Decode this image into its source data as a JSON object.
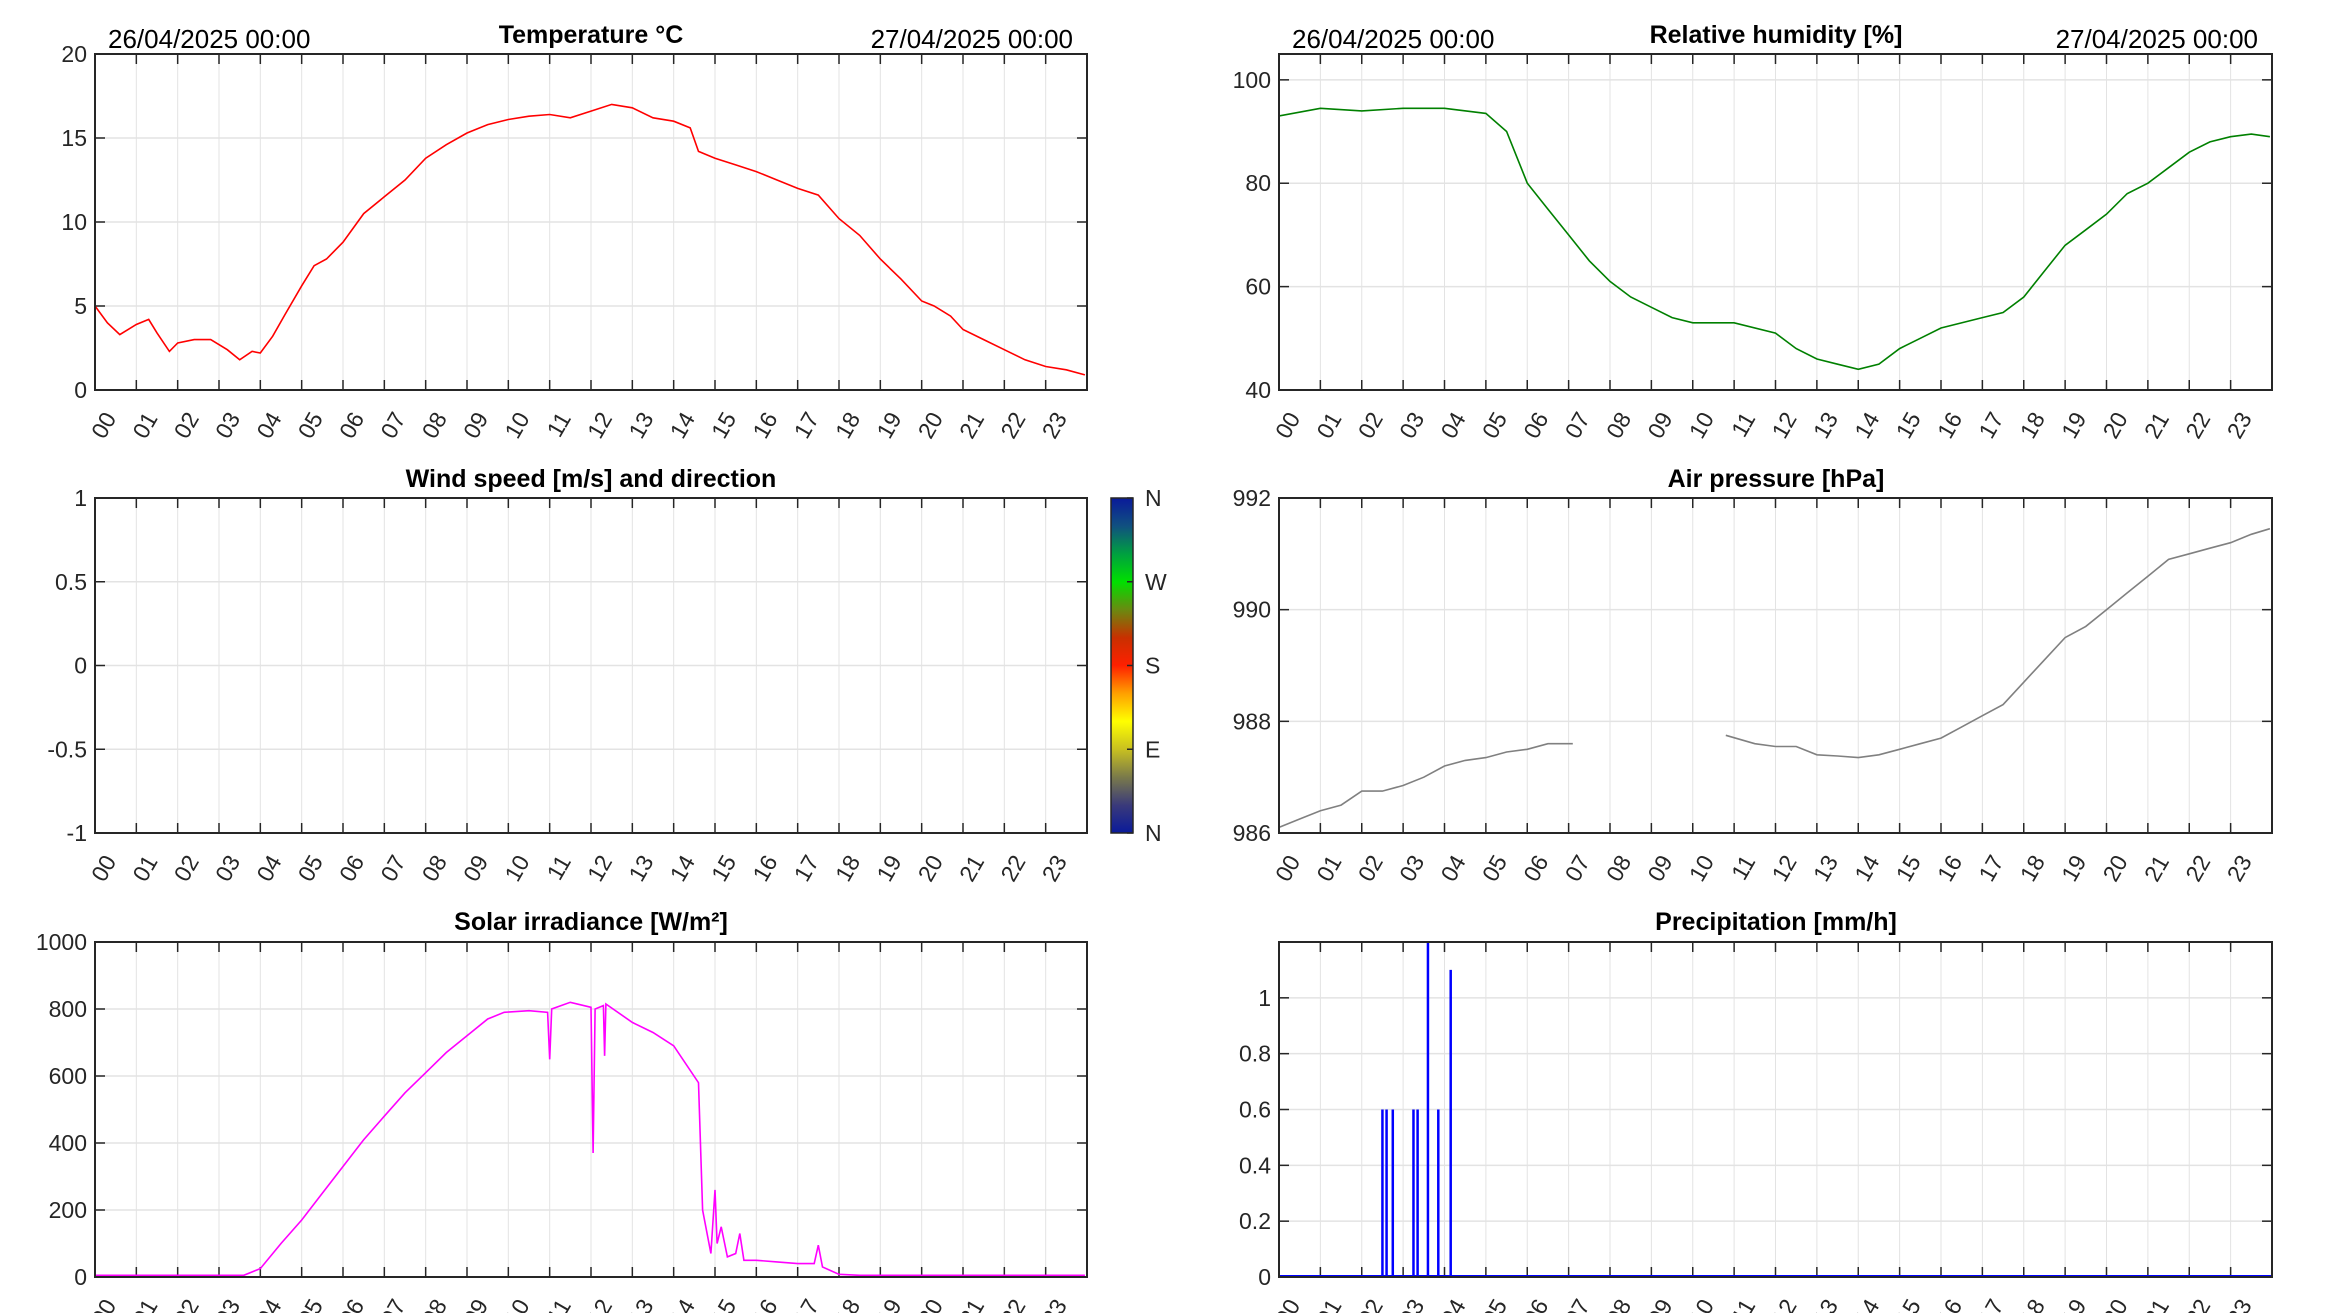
{
  "header": {
    "start_date": "26/04/2025 00:00",
    "end_date": "27/04/2025 00:00"
  },
  "hour_labels": [
    "00",
    "01",
    "02",
    "03",
    "04",
    "05",
    "06",
    "07",
    "08",
    "09",
    "10",
    "11",
    "12",
    "13",
    "14",
    "15",
    "16",
    "17",
    "18",
    "19",
    "20",
    "21",
    "22",
    "23"
  ],
  "colorbar": {
    "labels": [
      "N",
      "W",
      "S",
      "E",
      "N"
    ],
    "colors": [
      "#0a1a9a",
      "#3a3a7a",
      "#7a7a4a",
      "#c8c020",
      "#ffff00",
      "#ffa000",
      "#ff2000",
      "#c83000",
      "#6a8a10",
      "#00e000",
      "#00a040",
      "#105080",
      "#0a1a9a"
    ]
  },
  "chart_data": [
    {
      "type": "line",
      "title": "Temperature °C",
      "color": "#ff0000",
      "xlim": [
        0,
        24
      ],
      "ylim": [
        0,
        20
      ],
      "yticks": [
        "0",
        "5",
        "10",
        "15",
        "20"
      ],
      "ytick_values": [
        0,
        5,
        10,
        15,
        20
      ],
      "show_dates": true,
      "x": [
        0,
        0.3,
        0.6,
        1,
        1.3,
        1.5,
        1.8,
        2,
        2.4,
        2.8,
        3.2,
        3.5,
        3.8,
        4,
        4.3,
        4.6,
        5,
        5.3,
        5.6,
        6,
        6.5,
        7,
        7.5,
        8,
        8.5,
        9,
        9.5,
        10,
        10.5,
        11,
        11.5,
        12,
        12.5,
        13,
        13.5,
        14,
        14.4,
        14.6,
        15,
        15.5,
        16,
        16.5,
        17,
        17.5,
        18,
        18.5,
        19,
        19.5,
        20,
        20.3,
        20.7,
        21,
        21.5,
        22,
        22.5,
        23,
        23.5,
        23.95
      ],
      "y": [
        5,
        4,
        3.3,
        3.9,
        4.2,
        3.4,
        2.3,
        2.8,
        3,
        3,
        2.4,
        1.8,
        2.3,
        2.2,
        3.2,
        4.5,
        6.2,
        7.4,
        7.8,
        8.8,
        10.5,
        11.5,
        12.5,
        13.8,
        14.6,
        15.3,
        15.8,
        16.1,
        16.3,
        16.4,
        16.2,
        16.6,
        17,
        16.8,
        16.2,
        16,
        15.6,
        14.2,
        13.8,
        13.4,
        13,
        12.5,
        12,
        11.6,
        10.2,
        9.2,
        7.8,
        6.6,
        5.3,
        5,
        4.4,
        3.6,
        3,
        2.4,
        1.8,
        1.4,
        1.2,
        0.9
      ]
    },
    {
      "type": "line",
      "title": "Relative humidity [%]",
      "color": "#008000",
      "xlim": [
        0,
        24
      ],
      "ylim": [
        40,
        105
      ],
      "yticks": [
        "40",
        "60",
        "80",
        "100"
      ],
      "ytick_values": [
        40,
        60,
        80,
        100
      ],
      "show_dates": true,
      "x": [
        0,
        1,
        2,
        3,
        4,
        5,
        5.5,
        6,
        6.5,
        7,
        7.5,
        8,
        8.5,
        9,
        9.5,
        10,
        11,
        12,
        12.5,
        13,
        13.5,
        14,
        14.5,
        15,
        15.5,
        16,
        17,
        17.5,
        18,
        18.5,
        19,
        19.5,
        20,
        20.5,
        21,
        21.5,
        22,
        22.5,
        23,
        23.5,
        23.95
      ],
      "y": [
        93,
        94.5,
        94,
        94.5,
        94.5,
        93.5,
        90,
        80,
        75,
        70,
        65,
        61,
        58,
        56,
        54,
        53,
        53,
        51,
        48,
        46,
        45,
        44,
        45,
        48,
        50,
        52,
        54,
        55,
        58,
        63,
        68,
        71,
        74,
        78,
        80,
        83,
        86,
        88,
        89,
        89.5,
        89
      ]
    },
    {
      "type": "line",
      "title": "Wind speed [m/s] and direction",
      "color": "#000000",
      "xlim": [
        0,
        24
      ],
      "ylim": [
        -1,
        1
      ],
      "yticks": [
        "-1",
        "-0.5",
        "0",
        "0.5",
        "1"
      ],
      "ytick_values": [
        -1,
        -0.5,
        0,
        0.5,
        1
      ],
      "show_dates": false,
      "x": [],
      "y": [],
      "colorbar": true
    },
    {
      "type": "line",
      "title": "Air pressure [hPa]",
      "color": "#808080",
      "xlim": [
        0,
        24
      ],
      "ylim": [
        986,
        992
      ],
      "yticks": [
        "986",
        "988",
        "990",
        "992"
      ],
      "ytick_values": [
        986,
        988,
        990,
        992
      ],
      "show_dates": false,
      "segments": [
        {
          "x": [
            0,
            0.5,
            1,
            1.5,
            2,
            2.5,
            3,
            3.5,
            4,
            4.5,
            5,
            5.5,
            6,
            6.5,
            7.1
          ],
          "y": [
            986.1,
            986.25,
            986.4,
            986.5,
            986.75,
            986.75,
            986.85,
            987.0,
            987.2,
            987.3,
            987.35,
            987.45,
            987.5,
            987.6,
            987.6
          ]
        },
        {
          "x": [
            10.8,
            11.5,
            12,
            12.5,
            13,
            13.5,
            14,
            14.5,
            15,
            15.5,
            16,
            16.5,
            17,
            17.5,
            18,
            18.5,
            19,
            19.5,
            20,
            20.5,
            21,
            21.5,
            22,
            22.5,
            23,
            23.5,
            23.95
          ],
          "y": [
            987.75,
            987.6,
            987.55,
            987.55,
            987.4,
            987.38,
            987.35,
            987.4,
            987.5,
            987.6,
            987.7,
            987.9,
            988.1,
            988.3,
            988.7,
            989.1,
            989.5,
            989.7,
            990.0,
            990.3,
            990.6,
            990.9,
            991.0,
            991.1,
            991.2,
            991.35,
            991.45
          ]
        }
      ]
    },
    {
      "type": "line",
      "title": "Solar irradiance [W/m²]",
      "color": "#ff00ff",
      "xlim": [
        0,
        24
      ],
      "ylim": [
        0,
        1000
      ],
      "yticks": [
        "0",
        "200",
        "400",
        "600",
        "800",
        "1000"
      ],
      "ytick_values": [
        0,
        200,
        400,
        600,
        800,
        1000
      ],
      "show_dates": false,
      "x": [
        0,
        3.6,
        4,
        4.5,
        5,
        5.5,
        6,
        6.5,
        7,
        7.5,
        8,
        8.5,
        9,
        9.5,
        9.9,
        10.5,
        10.95,
        11,
        11.05,
        11.5,
        12,
        12.05,
        12.1,
        12.3,
        12.33,
        12.36,
        13,
        13.5,
        14,
        14.6,
        14.7,
        14.9,
        15,
        15.05,
        15.15,
        15.3,
        15.5,
        15.6,
        15.7,
        16,
        16.5,
        17,
        17.4,
        17.5,
        17.6,
        18,
        18.5,
        19,
        20,
        23.95
      ],
      "y": [
        5,
        5,
        25,
        100,
        170,
        250,
        330,
        410,
        480,
        550,
        610,
        670,
        720,
        770,
        790,
        795,
        790,
        650,
        800,
        820,
        805,
        370,
        800,
        810,
        660,
        815,
        760,
        730,
        690,
        580,
        200,
        70,
        260,
        100,
        150,
        60,
        70,
        130,
        50,
        50,
        45,
        40,
        40,
        95,
        30,
        8,
        5,
        5,
        5,
        5
      ]
    },
    {
      "type": "bar",
      "title": "Precipitation [mm/h]",
      "color": "#0000ff",
      "xlim": [
        0,
        24
      ],
      "ylim": [
        0,
        1.2
      ],
      "yticks": [
        "0",
        "0.2",
        "0.4",
        "0.6",
        "0.8",
        "1"
      ],
      "ytick_values": [
        0,
        0.2,
        0.4,
        0.6,
        0.8,
        1
      ],
      "show_dates": false,
      "x": [
        2.5,
        2.6,
        2.75,
        3.25,
        3.35,
        3.6,
        3.85,
        4.15
      ],
      "y": [
        0.6,
        0.6,
        0.6,
        0.6,
        0.6,
        1.2,
        0.6,
        1.1
      ]
    }
  ]
}
